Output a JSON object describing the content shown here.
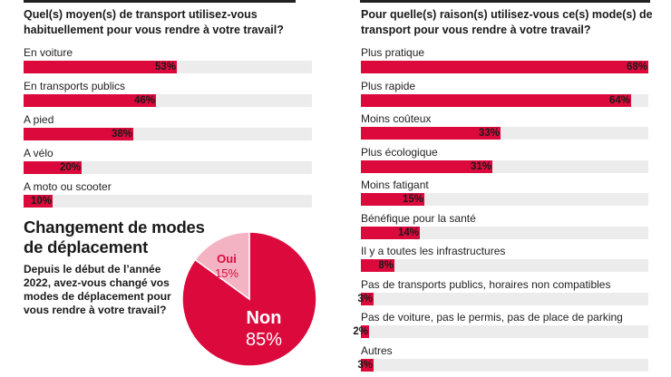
{
  "chart_data": [
    {
      "type": "bar",
      "orientation": "horizontal",
      "title": "Quel(s) moyen(s) de transport utilisez-vous habituellement pour vous rendre à votre travail?",
      "categories": [
        "En voiture",
        "En transports publics",
        "A pied",
        "A vélo",
        "A moto ou scooter"
      ],
      "values": [
        53,
        46,
        38,
        20,
        10
      ],
      "value_labels": [
        "53%",
        "46%",
        "38%",
        "20%",
        "10%"
      ],
      "xlim": [
        0,
        100
      ]
    },
    {
      "type": "bar",
      "orientation": "horizontal",
      "title": "Pour quelle(s) raison(s) utilisez-vous ce(s) mode(s) de transport pour vous rendre à votre travail?",
      "categories": [
        "Plus pratique",
        "Plus rapide",
        "Moins coûteux",
        "Plus écologique",
        "Moins fatigant",
        "Bénéfique pour la santé",
        "Il y a toutes les infrastructures",
        "Pas de transports publics, horaires non compatibles",
        "Pas de voiture, pas le permis, pas de place de parking",
        "Autres"
      ],
      "values": [
        68,
        64,
        33,
        31,
        15,
        14,
        8,
        3,
        2,
        3
      ],
      "value_labels": [
        "68%",
        "64%",
        "33%",
        "31%",
        "15%",
        "14%",
        "8%",
        "3%",
        "2%",
        "3%"
      ],
      "xlim": [
        0,
        68
      ]
    },
    {
      "type": "pie",
      "title": "Changement de modes de déplacement",
      "question": "Depuis le début de l’année 2022, avez-vous changé vos modes de déplacement pour vous rendre à votre travail?",
      "labels": [
        "Non",
        "Oui"
      ],
      "values": [
        85,
        15
      ],
      "value_labels": [
        "85%",
        "15%"
      ],
      "colors": [
        "#dc0a3c",
        "#f4b3c3"
      ]
    }
  ],
  "colors": {
    "bar": "#dc0a3c",
    "track": "#ececec",
    "pie_no": "#dc0a3c",
    "pie_yes": "#f4b3c3"
  }
}
